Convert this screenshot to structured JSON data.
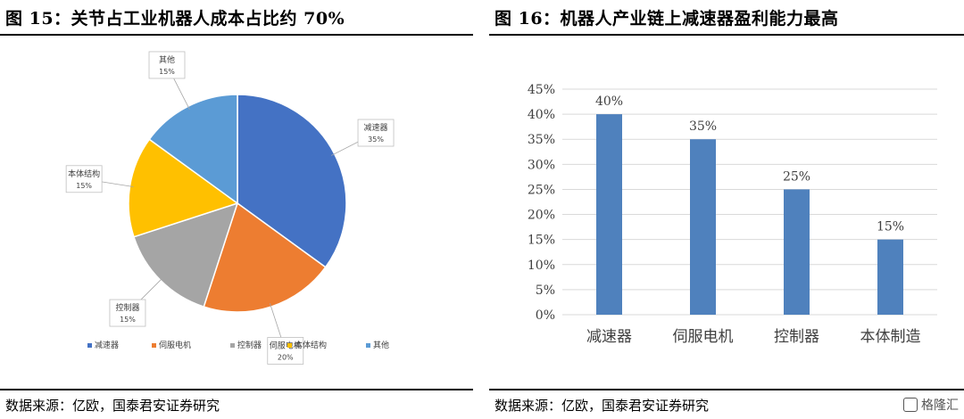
{
  "left": {
    "title": "图 15：关节占工业机器人成本占比约 70%",
    "source": "数据来源：亿欧，国泰君安证券研究",
    "chart_data": {
      "type": "pie",
      "title": "",
      "categories": [
        "减速器",
        "伺服电机",
        "控制器",
        "本体结构",
        "其他"
      ],
      "values": [
        35,
        20,
        15,
        15,
        15
      ],
      "value_labels": [
        "35%",
        "20%",
        "15%",
        "15%",
        "15%"
      ],
      "colors": [
        "#4472C4",
        "#ED7D31",
        "#A5A5A5",
        "#FFC000",
        "#5B9BD5"
      ],
      "legend_position": "bottom"
    }
  },
  "right": {
    "title": "图 16：机器人产业链上减速器盈利能力最高",
    "source": "数据来源：亿欧，国泰君安证券研究",
    "chart_data": {
      "type": "bar",
      "title": "",
      "categories": [
        "减速器",
        "伺服电机",
        "控制器",
        "本体制造"
      ],
      "values": [
        40,
        35,
        25,
        15
      ],
      "value_labels": [
        "40%",
        "35%",
        "25%",
        "15%"
      ],
      "ylim": [
        0,
        45
      ],
      "yticks": [
        "0%",
        "5%",
        "10%",
        "15%",
        "20%",
        "25%",
        "30%",
        "35%",
        "40%",
        "45%"
      ],
      "grid": true,
      "bar_color": "#4F81BD"
    }
  },
  "watermark": {
    "text": "格隆汇"
  }
}
